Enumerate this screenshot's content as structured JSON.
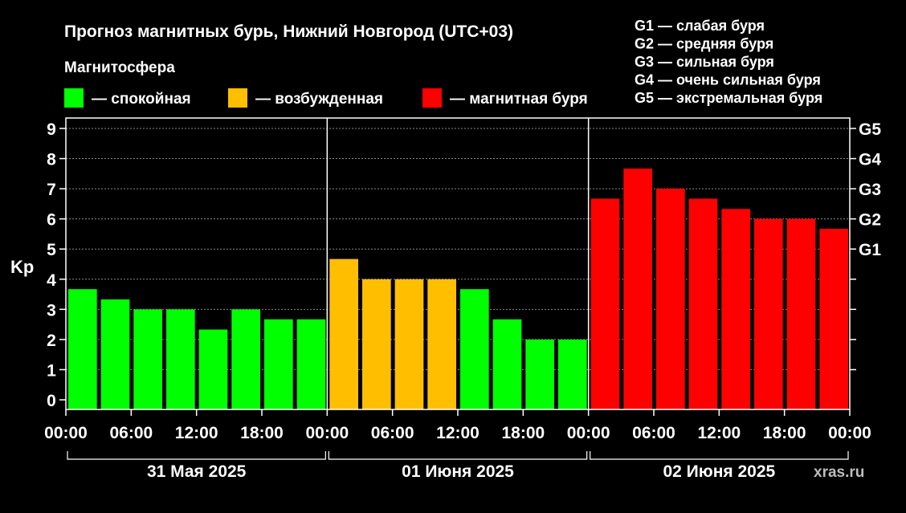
{
  "chart_data": {
    "type": "bar",
    "title": "Прогноз магнитных бурь, Нижний Новгород (UTC+03)",
    "legend": {
      "title": "Магнитосфера",
      "items": [
        {
          "label": "— спокойная",
          "color": "#00ff00"
        },
        {
          "label": "— возбужденная",
          "color": "#ffbf00"
        },
        {
          "label": "— магнитная буря",
          "color": "#ff0000"
        }
      ]
    },
    "g_scale_legend": [
      "G1 — слабая буря",
      "G2 — средняя буря",
      "G3 — сильная буря",
      "G4 — очень сильная буря",
      "G5 — экстремальная буря"
    ],
    "ylabel": "Kp",
    "ylim": [
      0,
      9
    ],
    "yticks": [
      "0",
      "1",
      "2",
      "3",
      "4",
      "5",
      "6",
      "7",
      "8",
      "9"
    ],
    "right_ticks": [
      {
        "value": 5,
        "label": "G1"
      },
      {
        "value": 6,
        "label": "G2"
      },
      {
        "value": 7,
        "label": "G3"
      },
      {
        "value": 8,
        "label": "G4"
      },
      {
        "value": 9,
        "label": "G5"
      }
    ],
    "right_minor_ticks": [
      1,
      2,
      3,
      4
    ],
    "xtick_labels": [
      "00:00",
      "06:00",
      "12:00",
      "18:00",
      "00:00",
      "06:00",
      "12:00",
      "18:00",
      "00:00",
      "06:00",
      "12:00",
      "18:00",
      "00:00"
    ],
    "days": [
      "31 Мая 2025",
      "01 Июня 2025",
      "02 Июня 2025"
    ],
    "grid": true,
    "values": [
      3.67,
      3.33,
      3,
      3,
      2.33,
      3,
      2.67,
      2.67,
      4.67,
      4,
      4,
      4,
      3.67,
      2.67,
      2,
      2,
      6.67,
      7.67,
      7,
      6.67,
      6.33,
      6,
      6,
      5.67
    ],
    "bar_colors": [
      "#00ff00",
      "#00ff00",
      "#00ff00",
      "#00ff00",
      "#00ff00",
      "#00ff00",
      "#00ff00",
      "#00ff00",
      "#ffbf00",
      "#ffbf00",
      "#ffbf00",
      "#ffbf00",
      "#00ff00",
      "#00ff00",
      "#00ff00",
      "#00ff00",
      "#ff0000",
      "#ff0000",
      "#ff0000",
      "#ff0000",
      "#ff0000",
      "#ff0000",
      "#ff0000",
      "#ff0000"
    ]
  },
  "watermark": "xras.ru"
}
